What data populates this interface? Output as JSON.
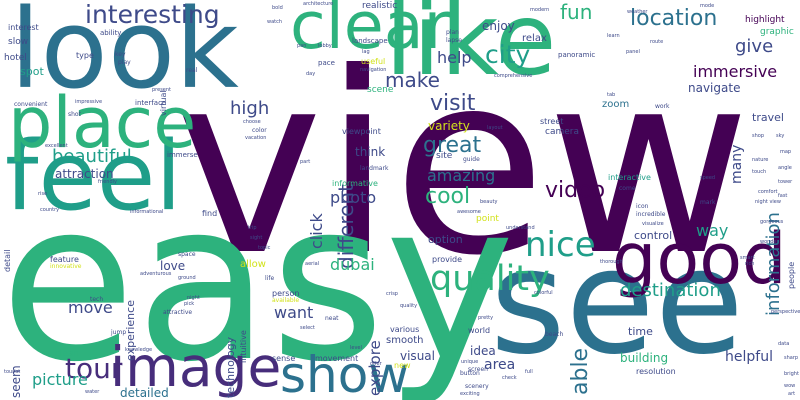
{
  "palette": {
    "dark_purple": "#440154",
    "indigo": "#3e4a89",
    "teal": "#2c718e",
    "green": "#2db27d",
    "lime": "#86d549",
    "yellow": "#d2e21b",
    "sea": "#1f9e89",
    "violet": "#472d7b",
    "blue": "#31688e"
  },
  "words": [
    {
      "text": "view",
      "size": 250,
      "color": "#440154",
      "rot": 0
    },
    {
      "text": "easy",
      "size": 220,
      "color": "#2db27d",
      "rot": 0
    },
    {
      "text": "see",
      "size": 145,
      "color": "#2c718e",
      "rot": 0
    },
    {
      "text": "look",
      "size": 110,
      "color": "#2c718e",
      "rot": 0
    },
    {
      "text": "like",
      "size": 100,
      "color": "#2db27d",
      "rot": 0
    },
    {
      "text": "feel",
      "size": 95,
      "color": "#1f9e89",
      "rot": 0
    },
    {
      "text": "place",
      "size": 70,
      "color": "#2db27d",
      "rot": 0
    },
    {
      "text": "good",
      "size": 70,
      "color": "#440154",
      "rot": 0
    },
    {
      "text": "clear",
      "size": 65,
      "color": "#2db27d",
      "rot": 0
    },
    {
      "text": "image",
      "size": 55,
      "color": "#472d7b",
      "rot": 0
    },
    {
      "text": "show",
      "size": 50,
      "color": "#2c718e",
      "rot": 0
    },
    {
      "text": "quality",
      "size": 35,
      "color": "#2db27d",
      "rot": 0
    },
    {
      "text": "nice",
      "size": 34,
      "color": "#1f9e89",
      "rot": 0
    },
    {
      "text": "tour",
      "size": 28,
      "color": "#472d7b",
      "rot": 0
    },
    {
      "text": "interesting",
      "size": 25,
      "color": "#3e4a89",
      "rot": 0
    },
    {
      "text": "city",
      "size": 25,
      "color": "#1f9e89",
      "rot": 0
    },
    {
      "text": "location",
      "size": 22,
      "color": "#2c718e",
      "rot": 0
    },
    {
      "text": "visit",
      "size": 22,
      "color": "#3e4a89",
      "rot": 0
    },
    {
      "text": "make",
      "size": 20,
      "color": "#3e4a89",
      "rot": 0
    },
    {
      "text": "cool",
      "size": 22,
      "color": "#2db27d",
      "rot": 0
    },
    {
      "text": "great",
      "size": 22,
      "color": "#2c718e",
      "rot": 0
    },
    {
      "text": "video",
      "size": 22,
      "color": "#440154",
      "rot": 0
    },
    {
      "text": "different",
      "size": 20,
      "color": "#3e4a89",
      "rot": 270
    },
    {
      "text": "immersive",
      "size": 16,
      "color": "#440154",
      "rot": 0
    },
    {
      "text": "give",
      "size": 18,
      "color": "#3e4a89",
      "rot": 0
    },
    {
      "text": "high",
      "size": 18,
      "color": "#3e4a89",
      "rot": 0
    },
    {
      "text": "beautiful",
      "size": 18,
      "color": "#1f9e89",
      "rot": 0
    },
    {
      "text": "information",
      "size": 18,
      "color": "#2c718e",
      "rot": 270
    },
    {
      "text": "destination",
      "size": 18,
      "color": "#1f9e89",
      "rot": 0
    },
    {
      "text": "fun",
      "size": 20,
      "color": "#2db27d",
      "rot": 0
    },
    {
      "text": "help",
      "size": 16,
      "color": "#3e4a89",
      "rot": 0
    },
    {
      "text": "amazing",
      "size": 16,
      "color": "#2c718e",
      "rot": 0
    },
    {
      "text": "photo",
      "size": 16,
      "color": "#3e4a89",
      "rot": 0
    },
    {
      "text": "click",
      "size": 16,
      "color": "#3e4a89",
      "rot": 270
    },
    {
      "text": "dubai",
      "size": 16,
      "color": "#2db27d",
      "rot": 0
    },
    {
      "text": "explore",
      "size": 15,
      "color": "#3e4a89",
      "rot": 270
    },
    {
      "text": "want",
      "size": 16,
      "color": "#3e4a89",
      "rot": 0
    },
    {
      "text": "move",
      "size": 16,
      "color": "#3e4a89",
      "rot": 0
    },
    {
      "text": "picture",
      "size": 16,
      "color": "#1f9e89",
      "rot": 0
    },
    {
      "text": "able",
      "size": 22,
      "color": "#2c718e",
      "rot": 270
    },
    {
      "text": "way",
      "size": 16,
      "color": "#1f9e89",
      "rot": 0
    },
    {
      "text": "many",
      "size": 14,
      "color": "#3e4a89",
      "rot": 270
    },
    {
      "text": "navigate",
      "size": 12,
      "color": "#3e4a89",
      "rot": 0
    },
    {
      "text": "enjoy",
      "size": 12,
      "color": "#3e4a89",
      "rot": 0
    },
    {
      "text": "relax",
      "size": 10,
      "color": "#3e4a89",
      "rot": 0
    },
    {
      "text": "travel",
      "size": 11,
      "color": "#3e4a89",
      "rot": 0
    },
    {
      "text": "highlight",
      "size": 9,
      "color": "#440154",
      "rot": 0
    },
    {
      "text": "graphic",
      "size": 9,
      "color": "#2db27d",
      "rot": 0
    },
    {
      "text": "spot",
      "size": 11,
      "color": "#1f9e89",
      "rot": 0
    },
    {
      "text": "hotel",
      "size": 9,
      "color": "#3e4a89",
      "rot": 0
    },
    {
      "text": "slow",
      "size": 9,
      "color": "#3e4a89",
      "rot": 0
    },
    {
      "text": "interest",
      "size": 8,
      "color": "#3e4a89",
      "rot": 0
    },
    {
      "text": "ability",
      "size": 7,
      "color": "#3e4a89",
      "rot": 0
    },
    {
      "text": "type",
      "size": 8,
      "color": "#3e4a89",
      "rot": 0
    },
    {
      "text": "key",
      "size": 6,
      "color": "#3e4a89",
      "rot": 0
    },
    {
      "text": "play",
      "size": 6,
      "color": "#3e4a89",
      "rot": 0
    },
    {
      "text": "virtual",
      "size": 8,
      "color": "#3e4a89",
      "rot": 270
    },
    {
      "text": "real",
      "size": 6,
      "color": "#3e4a89",
      "rot": 0
    },
    {
      "text": "useful",
      "size": 8,
      "color": "#d2e21b",
      "rot": 0
    },
    {
      "text": "landscape",
      "size": 7,
      "color": "#3e4a89",
      "rot": 0
    },
    {
      "text": "realistic",
      "size": 9,
      "color": "#3e4a89",
      "rot": 0
    },
    {
      "text": "plan",
      "size": 6,
      "color": "#3e4a89",
      "rot": 0
    },
    {
      "text": "lapse",
      "size": 6,
      "color": "#3e4a89",
      "rot": 0
    },
    {
      "text": "panoramic",
      "size": 7,
      "color": "#3e4a89",
      "rot": 0
    },
    {
      "text": "comprehensive",
      "size": 5,
      "color": "#3e4a89",
      "rot": 0
    },
    {
      "text": "pace",
      "size": 7,
      "color": "#3e4a89",
      "rot": 0
    },
    {
      "text": "tab",
      "size": 5,
      "color": "#3e4a89",
      "rot": 0
    },
    {
      "text": "zoom",
      "size": 10,
      "color": "#2c718e",
      "rot": 0
    },
    {
      "text": "work",
      "size": 6,
      "color": "#3e4a89",
      "rot": 0
    },
    {
      "text": "scene",
      "size": 9,
      "color": "#2db27d",
      "rot": 0
    },
    {
      "text": "street",
      "size": 8,
      "color": "#3e4a89",
      "rot": 0
    },
    {
      "text": "camera",
      "size": 9,
      "color": "#3e4a89",
      "rot": 0
    },
    {
      "text": "viewpoint",
      "size": 8,
      "color": "#3e4a89",
      "rot": 0
    },
    {
      "text": "variety",
      "size": 12,
      "color": "#d2e21b",
      "rot": 0
    },
    {
      "text": "think",
      "size": 12,
      "color": "#3e4a89",
      "rot": 0
    },
    {
      "text": "site",
      "size": 9,
      "color": "#3e4a89",
      "rot": 0
    },
    {
      "text": "guide",
      "size": 6,
      "color": "#3e4a89",
      "rot": 0
    },
    {
      "text": "landmark",
      "size": 6,
      "color": "#3e4a89",
      "rot": 0
    },
    {
      "text": "informative",
      "size": 8,
      "color": "#2db27d",
      "rot": 0
    },
    {
      "text": "interactive",
      "size": 8,
      "color": "#1f9e89",
      "rot": 0
    },
    {
      "text": "come",
      "size": 6,
      "color": "#3e4a89",
      "rot": 0
    },
    {
      "text": "point",
      "size": 9,
      "color": "#d2e21b",
      "rot": 0
    },
    {
      "text": "option",
      "size": 11,
      "color": "#3e4a89",
      "rot": 0
    },
    {
      "text": "control",
      "size": 11,
      "color": "#3e4a89",
      "rot": 0
    },
    {
      "text": "provide",
      "size": 8,
      "color": "#3e4a89",
      "rot": 0
    },
    {
      "text": "incredible",
      "size": 6,
      "color": "#3e4a89",
      "rot": 0
    },
    {
      "text": "visualize",
      "size": 5,
      "color": "#3e4a89",
      "rot": 0
    },
    {
      "text": "icon",
      "size": 6,
      "color": "#3e4a89",
      "rot": 0
    },
    {
      "text": "mark",
      "size": 6,
      "color": "#3e4a89",
      "rot": 0
    },
    {
      "text": "speed",
      "size": 5,
      "color": "#3e4a89",
      "rot": 0
    },
    {
      "text": "people",
      "size": 8,
      "color": "#3e4a89",
      "rot": 270
    },
    {
      "text": "attraction",
      "size": 12,
      "color": "#3e4a89",
      "rot": 0
    },
    {
      "text": "experience",
      "size": 11,
      "color": "#3e4a89",
      "rot": 270
    },
    {
      "text": "love",
      "size": 12,
      "color": "#3e4a89",
      "rot": 0
    },
    {
      "text": "allow",
      "size": 10,
      "color": "#d2e21b",
      "rot": 0
    },
    {
      "text": "technology",
      "size": 11,
      "color": "#3e4a89",
      "rot": 270
    },
    {
      "text": "intuitive",
      "size": 8,
      "color": "#3e4a89",
      "rot": 270
    },
    {
      "text": "person",
      "size": 8,
      "color": "#3e4a89",
      "rot": 0
    },
    {
      "text": "available",
      "size": 6,
      "color": "#d2e21b",
      "rot": 0
    },
    {
      "text": "neat",
      "size": 6,
      "color": "#3e4a89",
      "rot": 0
    },
    {
      "text": "select",
      "size": 5,
      "color": "#3e4a89",
      "rot": 0
    },
    {
      "text": "feature",
      "size": 8,
      "color": "#3e4a89",
      "rot": 0
    },
    {
      "text": "innovative",
      "size": 6,
      "color": "#d2e21b",
      "rot": 0
    },
    {
      "text": "detail",
      "size": 8,
      "color": "#3e4a89",
      "rot": 270
    },
    {
      "text": "seem",
      "size": 12,
      "color": "#3e4a89",
      "rot": 270
    },
    {
      "text": "clean",
      "size": 9,
      "color": "#2db27d",
      "rot": 0
    },
    {
      "text": "detailed",
      "size": 12,
      "color": "#2c718e",
      "rot": 0
    },
    {
      "text": "sense",
      "size": 8,
      "color": "#3e4a89",
      "rot": 0
    },
    {
      "text": "movement",
      "size": 8,
      "color": "#3e4a89",
      "rot": 0
    },
    {
      "text": "smooth",
      "size": 10,
      "color": "#3e4a89",
      "rot": 0
    },
    {
      "text": "various",
      "size": 8,
      "color": "#3e4a89",
      "rot": 0
    },
    {
      "text": "idea",
      "size": 12,
      "color": "#3e4a89",
      "rot": 0
    },
    {
      "text": "area",
      "size": 14,
      "color": "#3e4a89",
      "rot": 0
    },
    {
      "text": "visual",
      "size": 12,
      "color": "#3e4a89",
      "rot": 0
    },
    {
      "text": "world",
      "size": 8,
      "color": "#3e4a89",
      "rot": 0
    },
    {
      "text": "screen",
      "size": 6,
      "color": "#3e4a89",
      "rot": 0
    },
    {
      "text": "button",
      "size": 6,
      "color": "#3e4a89",
      "rot": 0
    },
    {
      "text": "scenery",
      "size": 6,
      "color": "#3e4a89",
      "rot": 0
    },
    {
      "text": "exciting",
      "size": 5,
      "color": "#3e4a89",
      "rot": 0
    },
    {
      "text": "new",
      "size": 8,
      "color": "#d2e21b",
      "rot": 0
    },
    {
      "text": "time",
      "size": 11,
      "color": "#3e4a89",
      "rot": 0
    },
    {
      "text": "building",
      "size": 12,
      "color": "#2db27d",
      "rot": 0
    },
    {
      "text": "helpful",
      "size": 14,
      "color": "#3e4a89",
      "rot": 0
    },
    {
      "text": "resolution",
      "size": 8,
      "color": "#3e4a89",
      "rot": 0
    },
    {
      "text": "impressive",
      "size": 5,
      "color": "#3e4a89",
      "rot": 0
    },
    {
      "text": "shot",
      "size": 6,
      "color": "#3e4a89",
      "rot": 0
    },
    {
      "text": "convenient",
      "size": 6,
      "color": "#3e4a89",
      "rot": 0
    },
    {
      "text": "excellent",
      "size": 5,
      "color": "#3e4a89",
      "rot": 0
    },
    {
      "text": "interface",
      "size": 7,
      "color": "#3e4a89",
      "rot": 0
    },
    {
      "text": "immerse",
      "size": 7,
      "color": "#3e4a89",
      "rot": 0
    },
    {
      "text": "choose",
      "size": 5,
      "color": "#3e4a89",
      "rot": 0
    },
    {
      "text": "color",
      "size": 6,
      "color": "#3e4a89",
      "rot": 0
    },
    {
      "text": "find",
      "size": 8,
      "color": "#3e4a89",
      "rot": 0
    },
    {
      "text": "informational",
      "size": 5,
      "color": "#3e4a89",
      "rot": 0
    },
    {
      "text": "space",
      "size": 6,
      "color": "#3e4a89",
      "rot": 0
    },
    {
      "text": "night",
      "size": 5,
      "color": "#3e4a89",
      "rot": 0
    },
    {
      "text": "pick",
      "size": 5,
      "color": "#3e4a89",
      "rot": 0
    },
    {
      "text": "attractive",
      "size": 6,
      "color": "#3e4a89",
      "rot": 0
    },
    {
      "text": "tech",
      "size": 6,
      "color": "#3e4a89",
      "rot": 0
    },
    {
      "text": "jump",
      "size": 6,
      "color": "#3e4a89",
      "rot": 0
    },
    {
      "text": "water",
      "size": 5,
      "color": "#3e4a89",
      "rot": 0
    },
    {
      "text": "tourist",
      "size": 5,
      "color": "#3e4a89",
      "rot": 0
    },
    {
      "text": "life",
      "size": 6,
      "color": "#3e4a89",
      "rot": 0
    },
    {
      "text": "crisp",
      "size": 5,
      "color": "#3e4a89",
      "rot": 0
    },
    {
      "text": "quality",
      "size": 5,
      "color": "#3e4a89",
      "rot": 0
    },
    {
      "text": "pretty",
      "size": 5,
      "color": "#3e4a89",
      "rot": 0
    },
    {
      "text": "beach",
      "size": 6,
      "color": "#3e4a89",
      "rot": 0
    },
    {
      "text": "colorful",
      "size": 5,
      "color": "#3e4a89",
      "rot": 0
    },
    {
      "text": "check",
      "size": 5,
      "color": "#3e4a89",
      "rot": 0
    },
    {
      "text": "full",
      "size": 5,
      "color": "#3e4a89",
      "rot": 0
    },
    {
      "text": "unique",
      "size": 5,
      "color": "#3e4a89",
      "rot": 0
    },
    {
      "text": "offer",
      "size": 5,
      "color": "#3e4a89",
      "rot": 0
    },
    {
      "text": "beauty",
      "size": 5,
      "color": "#3e4a89",
      "rot": 0
    },
    {
      "text": "thorough",
      "size": 5,
      "color": "#3e4a89",
      "rot": 0
    },
    {
      "text": "perspective",
      "size": 5,
      "color": "#3e4a89",
      "rot": 0
    },
    {
      "text": "present",
      "size": 5,
      "color": "#3e4a89",
      "rot": 0
    },
    {
      "text": "navigation",
      "size": 5,
      "color": "#3e4a89",
      "rot": 0
    },
    {
      "text": "architecture",
      "size": 5,
      "color": "#3e4a89",
      "rot": 0
    },
    {
      "text": "watch",
      "size": 5,
      "color": "#3e4a89",
      "rot": 0
    },
    {
      "text": "pan",
      "size": 5,
      "color": "#3e4a89",
      "rot": 0
    },
    {
      "text": "lag",
      "size": 5,
      "color": "#3e4a89",
      "rot": 0
    },
    {
      "text": "learn",
      "size": 5,
      "color": "#3e4a89",
      "rot": 0
    },
    {
      "text": "mode",
      "size": 5,
      "color": "#3e4a89",
      "rot": 0
    },
    {
      "text": "weather",
      "size": 5,
      "color": "#3e4a89",
      "rot": 0
    },
    {
      "text": "vacation",
      "size": 5,
      "color": "#3e4a89",
      "rot": 0
    },
    {
      "text": "awesome",
      "size": 5,
      "color": "#3e4a89",
      "rot": 0
    },
    {
      "text": "ground",
      "size": 5,
      "color": "#3e4a89",
      "rot": 0
    },
    {
      "text": "adventurous",
      "size": 5,
      "color": "#3e4a89",
      "rot": 0
    },
    {
      "text": "aerial",
      "size": 5,
      "color": "#3e4a89",
      "rot": 0
    },
    {
      "text": "level",
      "size": 5,
      "color": "#3e4a89",
      "rot": 0
    },
    {
      "text": "knowledge",
      "size": 5,
      "color": "#3e4a89",
      "rot": 0
    },
    {
      "text": "country",
      "size": 5,
      "color": "#3e4a89",
      "rot": 0
    },
    {
      "text": "rise",
      "size": 5,
      "color": "#3e4a89",
      "rot": 0
    },
    {
      "text": "friendly",
      "size": 5,
      "color": "#3e4a89",
      "rot": 0
    },
    {
      "text": "bold",
      "size": 5,
      "color": "#3e4a89",
      "rot": 0
    },
    {
      "text": "day",
      "size": 5,
      "color": "#3e4a89",
      "rot": 0
    },
    {
      "text": "lobby",
      "size": 5,
      "color": "#3e4a89",
      "rot": 0
    },
    {
      "text": "layout",
      "size": 5,
      "color": "#3e4a89",
      "rot": 0
    },
    {
      "text": "panel",
      "size": 5,
      "color": "#3e4a89",
      "rot": 0
    },
    {
      "text": "part",
      "size": 5,
      "color": "#3e4a89",
      "rot": 0
    },
    {
      "text": "understand",
      "size": 5,
      "color": "#3e4a89",
      "rot": 0
    },
    {
      "text": "route",
      "size": 5,
      "color": "#3e4a89",
      "rot": 0
    },
    {
      "text": "topic",
      "size": 5,
      "color": "#3e4a89",
      "rot": 0
    },
    {
      "text": "sight",
      "size": 5,
      "color": "#3e4a89",
      "rot": 0
    },
    {
      "text": "trip",
      "size": 5,
      "color": "#3e4a89",
      "rot": 0
    },
    {
      "text": "modern",
      "size": 5,
      "color": "#3e4a89",
      "rot": 0
    },
    {
      "text": "wonder",
      "size": 5,
      "color": "#3e4a89",
      "rot": 0
    },
    {
      "text": "gorgeous",
      "size": 5,
      "color": "#3e4a89",
      "rot": 0
    },
    {
      "text": "comfort",
      "size": 5,
      "color": "#3e4a89",
      "rot": 0
    },
    {
      "text": "night view",
      "size": 5,
      "color": "#3e4a89",
      "rot": 0
    },
    {
      "text": "touch",
      "size": 5,
      "color": "#3e4a89",
      "rot": 0
    },
    {
      "text": "nature",
      "size": 5,
      "color": "#3e4a89",
      "rot": 0
    },
    {
      "text": "shop",
      "size": 5,
      "color": "#3e4a89",
      "rot": 0
    },
    {
      "text": "sky",
      "size": 5,
      "color": "#3e4a89",
      "rot": 0
    },
    {
      "text": "map",
      "size": 5,
      "color": "#3e4a89",
      "rot": 0
    },
    {
      "text": "angle",
      "size": 5,
      "color": "#3e4a89",
      "rot": 0
    },
    {
      "text": "tower",
      "size": 5,
      "color": "#3e4a89",
      "rot": 0
    },
    {
      "text": "fast",
      "size": 5,
      "color": "#3e4a89",
      "rot": 0
    },
    {
      "text": "smart",
      "size": 5,
      "color": "#3e4a89",
      "rot": 0
    },
    {
      "text": "rich",
      "size": 5,
      "color": "#3e4a89",
      "rot": 0
    },
    {
      "text": "data",
      "size": 5,
      "color": "#3e4a89",
      "rot": 0
    },
    {
      "text": "sharp",
      "size": 5,
      "color": "#3e4a89",
      "rot": 0
    },
    {
      "text": "bright",
      "size": 5,
      "color": "#3e4a89",
      "rot": 0
    },
    {
      "text": "wow",
      "size": 5,
      "color": "#3e4a89",
      "rot": 0
    },
    {
      "text": "art",
      "size": 5,
      "color": "#3e4a89",
      "rot": 0
    }
  ]
}
